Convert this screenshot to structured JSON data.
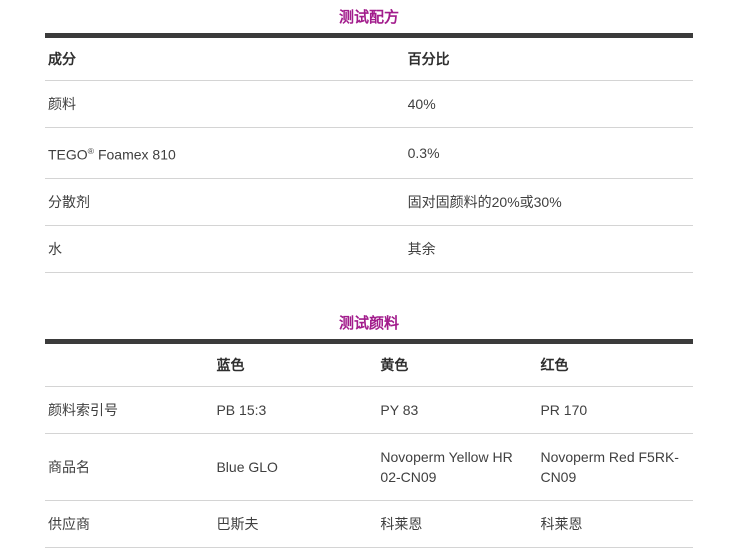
{
  "accent_color": "#a21c8c",
  "tables": [
    {
      "title": "测试配方",
      "columns": [
        "成分",
        "百分比"
      ],
      "rows": [
        [
          "颜料",
          "40%"
        ],
        [
          "TEGO® Foamex 810",
          "0.3%"
        ],
        [
          "分散剂",
          "固对固颜料的20%或30%"
        ],
        [
          "水",
          "其余"
        ]
      ]
    },
    {
      "title": "测试颜料",
      "columns": [
        "",
        "蓝色",
        "黄色",
        "红色"
      ],
      "rows": [
        [
          "颜料索引号",
          "PB 15:3",
          "PY 83",
          "PR 170"
        ],
        [
          "商品名",
          "Blue GLO",
          "Novoperm Yellow HR 02-CN09",
          "Novoperm Red F5RK-CN09"
        ],
        [
          "供应商",
          "巴斯夫",
          "科莱恩",
          "科莱恩"
        ]
      ]
    }
  ]
}
